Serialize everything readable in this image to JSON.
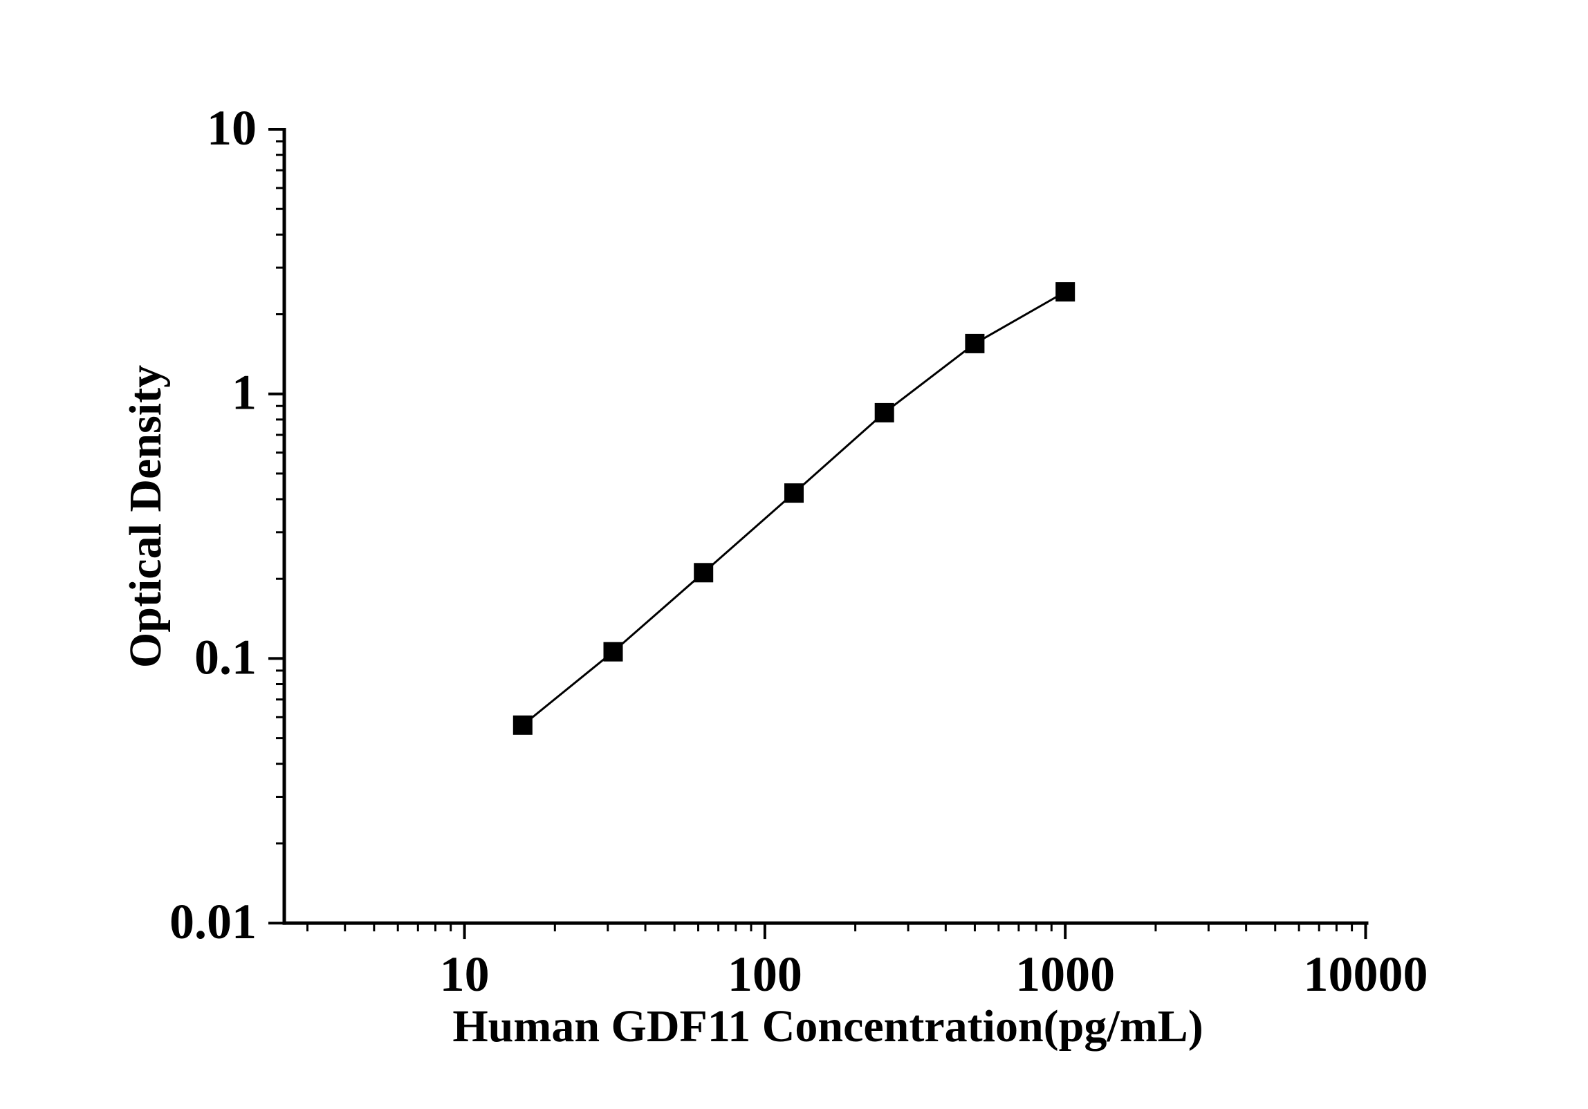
{
  "figure": {
    "background_color": "#ffffff",
    "ink_color": "#000000"
  },
  "chart_data": {
    "type": "line",
    "subtype": "xy-scatter-with-line",
    "title": "",
    "xlabel": "Human GDF11 Concentration(pg/mL)",
    "ylabel": "Optical Density",
    "x_scale": "log",
    "y_scale": "log",
    "x": [
      15.625,
      31.25,
      62.5,
      125,
      250,
      500,
      1000
    ],
    "y": [
      0.056,
      0.106,
      0.211,
      0.422,
      0.849,
      1.55,
      2.43
    ],
    "series": [
      {
        "name": "standard-curve",
        "marker": "filled-square",
        "marker_color": "#000000",
        "line_color": "#000000"
      }
    ],
    "x_ticks": {
      "values": [
        10,
        100,
        1000,
        10000
      ],
      "labels": [
        "10",
        "100",
        "1000",
        "10000"
      ]
    },
    "y_ticks": {
      "values": [
        10,
        1,
        0.1,
        0.01
      ],
      "labels": [
        "10",
        "1",
        "0.1",
        "0.01"
      ]
    },
    "x_range_log10": [
      0.4,
      4.0
    ],
    "y_range_log10": [
      -2.0,
      1.0
    ],
    "minor_ticks": "log-2-to-9",
    "grid": false,
    "legend": "none"
  }
}
